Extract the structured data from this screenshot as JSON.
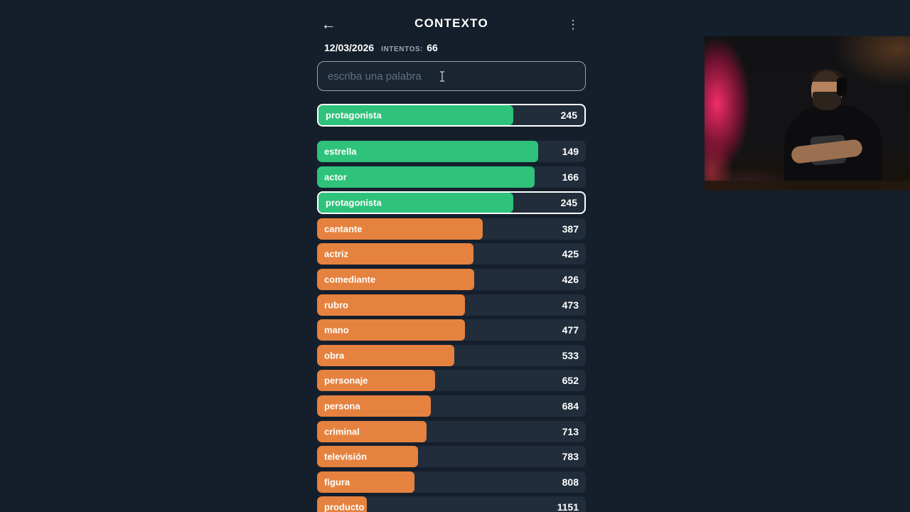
{
  "header": {
    "title": "CONTEXTO",
    "back_icon": "←",
    "menu_icon": "⋮"
  },
  "meta": {
    "date": "12/03/2026",
    "attempts_label": "INTENTOS:",
    "attempts_value": "66"
  },
  "input": {
    "placeholder": "escriba una palabra",
    "value": ""
  },
  "colors": {
    "green": "#2ec27b",
    "orange": "#e5823f",
    "row_bg": "#212d3b",
    "page_bg": "#151f2b",
    "highlight_border": "#ffffff"
  },
  "guesses": {
    "latest": {
      "word": "protagonista",
      "rank": "245",
      "color": "green",
      "pct": 73.3,
      "highlight": true
    },
    "items": [
      {
        "word": "estrella",
        "rank": "149",
        "color": "green",
        "pct": 82.3,
        "highlight": false
      },
      {
        "word": "actor",
        "rank": "166",
        "color": "green",
        "pct": 81.0,
        "highlight": false
      },
      {
        "word": "protagonista",
        "rank": "245",
        "color": "green",
        "pct": 73.3,
        "highlight": true
      },
      {
        "word": "cantante",
        "rank": "387",
        "color": "orange",
        "pct": 61.6,
        "highlight": false
      },
      {
        "word": "actriz",
        "rank": "425",
        "color": "orange",
        "pct": 58.2,
        "highlight": false
      },
      {
        "word": "comediante",
        "rank": "426",
        "color": "orange",
        "pct": 58.5,
        "highlight": false
      },
      {
        "word": "rubro",
        "rank": "473",
        "color": "orange",
        "pct": 55.0,
        "highlight": false
      },
      {
        "word": "mano",
        "rank": "477",
        "color": "orange",
        "pct": 55.0,
        "highlight": false
      },
      {
        "word": "obra",
        "rank": "533",
        "color": "orange",
        "pct": 51.1,
        "highlight": false
      },
      {
        "word": "personaje",
        "rank": "652",
        "color": "orange",
        "pct": 43.9,
        "highlight": false
      },
      {
        "word": "persona",
        "rank": "684",
        "color": "orange",
        "pct": 42.3,
        "highlight": false
      },
      {
        "word": "criminal",
        "rank": "713",
        "color": "orange",
        "pct": 40.7,
        "highlight": false
      },
      {
        "word": "televisión",
        "rank": "783",
        "color": "orange",
        "pct": 37.6,
        "highlight": false
      },
      {
        "word": "figura",
        "rank": "808",
        "color": "orange",
        "pct": 36.2,
        "highlight": false
      },
      {
        "word": "producto",
        "rank": "1151",
        "color": "orange",
        "pct": 18.5,
        "highlight": false
      }
    ]
  }
}
